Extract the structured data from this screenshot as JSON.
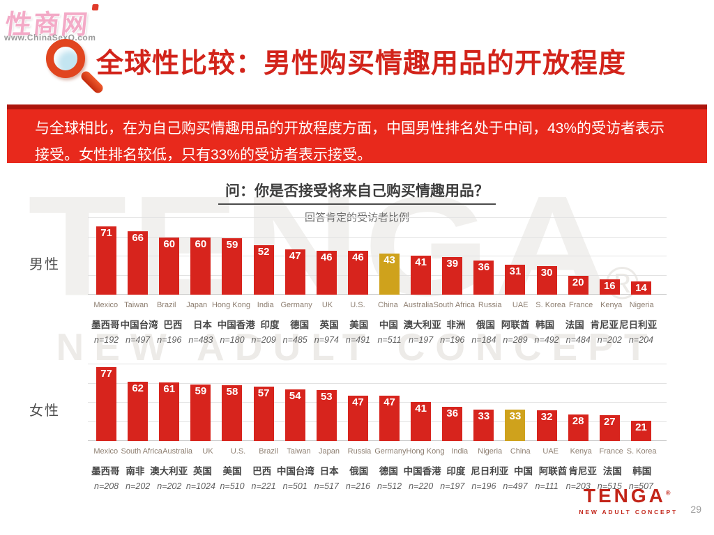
{
  "site_watermark": {
    "brand": "性商网",
    "url": "www.ChinaSexQ.com"
  },
  "background_watermark": {
    "word": "TENGA",
    "registered": "®",
    "tagline": "NEW ADULT CONCEPT"
  },
  "header": {
    "title": "全球性比较：男性购买情趣用品的开放程度"
  },
  "banner": {
    "text": "与全球相比，在为自己购买情趣用品的开放程度方面，中国男性排名处于中间，43%的受访者表示接受。女性排名较低，只有33%的受访者表示接受。"
  },
  "question": {
    "title": "问：你是否接受将来自己购买情趣用品？",
    "subtitle": "回答肯定的受访者比例"
  },
  "footer": {
    "logo": "TENGA",
    "registered": "®",
    "tagline": "NEW ADULT CONCEPT",
    "page_number": "29"
  },
  "chart_data": [
    {
      "type": "bar",
      "group_label": "男性",
      "title": "问：你是否接受将来自己购买情趣用品？",
      "subtitle": "回答肯定的受访者比例",
      "ylim": [
        0,
        80
      ],
      "grid": true,
      "grid_step": 20,
      "legend_position": "none",
      "bar_color": "#d7241d",
      "highlight_color": "#cfa21c",
      "highlight_category": "China",
      "categories": [
        "Mexico",
        "Taiwan",
        "Brazil",
        "Japan",
        "Hong Kong",
        "India",
        "Germany",
        "UK",
        "U.S.",
        "China",
        "Australia",
        "South Africa",
        "Russia",
        "UAE",
        "S. Korea",
        "France",
        "Kenya",
        "Nigeria"
      ],
      "categories_zh": [
        "墨西哥",
        "中国台湾",
        "巴西",
        "日本",
        "中国香港",
        "印度",
        "德国",
        "英国",
        "美国",
        "中国",
        "澳大利亚",
        "非洲",
        "俄国",
        "阿联酋",
        "韩国",
        "法国",
        "肯尼亚",
        "尼日利亚"
      ],
      "sample_sizes": [
        "n=192",
        "n=497",
        "n=196",
        "n=483",
        "n=180",
        "n=209",
        "n=485",
        "n=974",
        "n=491",
        "n=511",
        "n=197",
        "n=196",
        "n=184",
        "n=289",
        "n=492",
        "n=484",
        "n=202",
        "n=204"
      ],
      "values": [
        71,
        66,
        60,
        60,
        59,
        52,
        47,
        46,
        46,
        43,
        41,
        39,
        36,
        31,
        30,
        20,
        16,
        14
      ]
    },
    {
      "type": "bar",
      "group_label": "女性",
      "title": "问：你是否接受将来自己购买情趣用品？",
      "subtitle": "回答肯定的受访者比例",
      "ylim": [
        0,
        80
      ],
      "grid": true,
      "grid_step": 20,
      "legend_position": "none",
      "bar_color": "#d7241d",
      "highlight_color": "#cfa21c",
      "highlight_category": "China",
      "categories": [
        "Mexico",
        "South Africa",
        "Australia",
        "UK",
        "U.S.",
        "Brazil",
        "Taiwan",
        "Japan",
        "Russia",
        "Germany",
        "Hong Kong",
        "India",
        "Nigeria",
        "China",
        "UAE",
        "Kenya",
        "France",
        "S. Korea"
      ],
      "categories_zh": [
        "墨西哥",
        "南非",
        "澳大利亚",
        "英国",
        "美国",
        "巴西",
        "中国台湾",
        "日本",
        "俄国",
        "德国",
        "中国香港",
        "印度",
        "尼日利亚",
        "中国",
        "阿联酋",
        "肯尼亚",
        "法国",
        "韩国"
      ],
      "sample_sizes": [
        "n=208",
        "n=202",
        "n=202",
        "n=1024",
        "n=510",
        "n=221",
        "n=501",
        "n=517",
        "n=216",
        "n=512",
        "n=220",
        "n=197",
        "n=196",
        "n=497",
        "n=111",
        "n=203",
        "n=515",
        "n=507"
      ],
      "values": [
        77,
        62,
        61,
        59,
        58,
        57,
        54,
        53,
        47,
        47,
        41,
        36,
        33,
        33,
        32,
        28,
        27,
        21
      ]
    }
  ]
}
